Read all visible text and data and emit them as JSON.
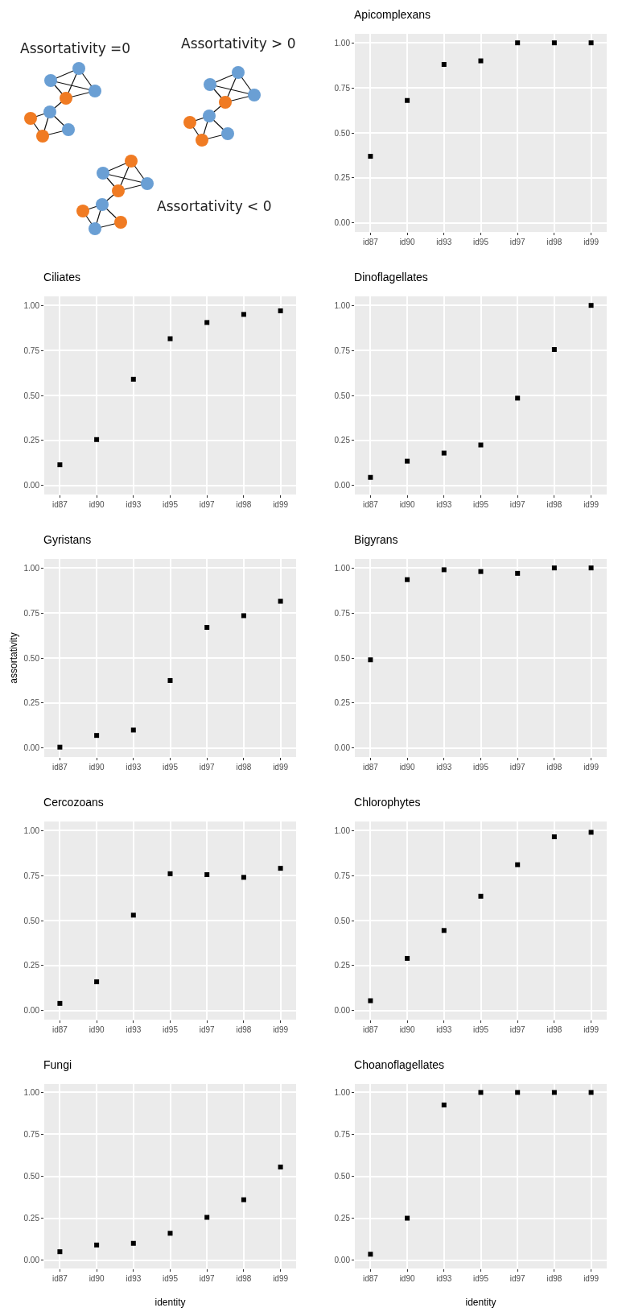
{
  "chart_data": [
    {
      "type": "other",
      "annotations": [
        "Assortativity =0",
        "Assortativity > 0",
        "Assortativity < 0"
      ]
    },
    {
      "type": "scatter",
      "title": "Apicomplexans",
      "categories": [
        "id87",
        "id90",
        "id93",
        "id95",
        "id97",
        "id98",
        "id99"
      ],
      "values": [
        0.37,
        0.68,
        0.88,
        0.9,
        1,
        1,
        1
      ],
      "color": "#000000",
      "marker": "square",
      "ylim": [
        -0.05,
        1.05
      ],
      "yticks": [
        {
          "value": 0,
          "label": "0.00"
        },
        {
          "value": 0.25,
          "label": "0.25"
        },
        {
          "value": 0.5,
          "label": "0.50"
        },
        {
          "value": 0.75,
          "label": "0.75"
        },
        {
          "value": 1,
          "label": "1.00"
        }
      ],
      "grid": true
    },
    {
      "type": "scatter",
      "title": "Ciliates",
      "categories": [
        "id87",
        "id90",
        "id93",
        "id95",
        "id97",
        "id98",
        "id99"
      ],
      "values": [
        0.115,
        0.255,
        0.59,
        0.815,
        0.905,
        0.95,
        0.97
      ],
      "color": "#000000",
      "marker": "square",
      "ylim": [
        -0.05,
        1.05
      ],
      "yticks": [
        {
          "value": 0,
          "label": "0.00"
        },
        {
          "value": 0.25,
          "label": "0.25"
        },
        {
          "value": 0.5,
          "label": "0.50"
        },
        {
          "value": 0.75,
          "label": "0.75"
        },
        {
          "value": 1,
          "label": "1.00"
        }
      ],
      "grid": true
    },
    {
      "type": "scatter",
      "title": "Dinoflagellates",
      "categories": [
        "id87",
        "id90",
        "id93",
        "id95",
        "id97",
        "id98",
        "id99"
      ],
      "values": [
        0.045,
        0.135,
        0.18,
        0.225,
        0.485,
        0.755,
        1
      ],
      "color": "#000000",
      "marker": "square",
      "ylim": [
        -0.05,
        1.05
      ],
      "yticks": [
        {
          "value": 0,
          "label": "0.00"
        },
        {
          "value": 0.25,
          "label": "0.25"
        },
        {
          "value": 0.5,
          "label": "0.50"
        },
        {
          "value": 0.75,
          "label": "0.75"
        },
        {
          "value": 1,
          "label": "1.00"
        }
      ],
      "grid": true
    },
    {
      "type": "scatter",
      "title": "Gyristans",
      "ylabel": "assortativity",
      "categories": [
        "id87",
        "id90",
        "id93",
        "id95",
        "id97",
        "id98",
        "id99"
      ],
      "values": [
        0.005,
        0.07,
        0.1,
        0.375,
        0.67,
        0.735,
        0.815
      ],
      "color": "#000000",
      "marker": "square",
      "ylim": [
        -0.05,
        1.05
      ],
      "yticks": [
        {
          "value": 0,
          "label": "0.00"
        },
        {
          "value": 0.25,
          "label": "0.25"
        },
        {
          "value": 0.5,
          "label": "0.50"
        },
        {
          "value": 0.75,
          "label": "0.75"
        },
        {
          "value": 1,
          "label": "1.00"
        }
      ],
      "grid": true
    },
    {
      "type": "scatter",
      "title": "Bigyrans",
      "categories": [
        "id87",
        "id90",
        "id93",
        "id95",
        "id97",
        "id98",
        "id99"
      ],
      "values": [
        0.49,
        0.935,
        0.99,
        0.98,
        0.97,
        1,
        1
      ],
      "color": "#000000",
      "marker": "square",
      "ylim": [
        -0.05,
        1.05
      ],
      "yticks": [
        {
          "value": 0,
          "label": "0.00"
        },
        {
          "value": 0.25,
          "label": "0.25"
        },
        {
          "value": 0.5,
          "label": "0.50"
        },
        {
          "value": 0.75,
          "label": "0.75"
        },
        {
          "value": 1,
          "label": "1.00"
        }
      ],
      "grid": true
    },
    {
      "type": "scatter",
      "title": "Cercozoans",
      "categories": [
        "id87",
        "id90",
        "id93",
        "id95",
        "id97",
        "id98",
        "id99"
      ],
      "values": [
        0.04,
        0.16,
        0.53,
        0.76,
        0.755,
        0.74,
        0.79
      ],
      "color": "#000000",
      "marker": "square",
      "ylim": [
        -0.05,
        1.05
      ],
      "yticks": [
        {
          "value": 0,
          "label": "0.00"
        },
        {
          "value": 0.25,
          "label": "0.25"
        },
        {
          "value": 0.5,
          "label": "0.50"
        },
        {
          "value": 0.75,
          "label": "0.75"
        },
        {
          "value": 1,
          "label": "1.00"
        }
      ],
      "grid": true
    },
    {
      "type": "scatter",
      "title": "Chlorophytes",
      "categories": [
        "id87",
        "id90",
        "id93",
        "id95",
        "id97",
        "id98",
        "id99"
      ],
      "values": [
        0.055,
        0.29,
        0.445,
        0.635,
        0.81,
        0.965,
        0.99
      ],
      "color": "#000000",
      "marker": "square",
      "ylim": [
        -0.05,
        1.05
      ],
      "yticks": [
        {
          "value": 0,
          "label": "0.00"
        },
        {
          "value": 0.25,
          "label": "0.25"
        },
        {
          "value": 0.5,
          "label": "0.50"
        },
        {
          "value": 0.75,
          "label": "0.75"
        },
        {
          "value": 1,
          "label": "1.00"
        }
      ],
      "grid": true
    },
    {
      "type": "scatter",
      "title": "Fungi",
      "xlabel": "identity",
      "categories": [
        "id87",
        "id90",
        "id93",
        "id95",
        "id97",
        "id98",
        "id99"
      ],
      "values": [
        0.05,
        0.09,
        0.1,
        0.16,
        0.255,
        0.36,
        0.555
      ],
      "color": "#000000",
      "marker": "square",
      "ylim": [
        -0.05,
        1.05
      ],
      "yticks": [
        {
          "value": 0,
          "label": "0.00"
        },
        {
          "value": 0.25,
          "label": "0.25"
        },
        {
          "value": 0.5,
          "label": "0.50"
        },
        {
          "value": 0.75,
          "label": "0.75"
        },
        {
          "value": 1,
          "label": "1.00"
        }
      ],
      "grid": true
    },
    {
      "type": "scatter",
      "title": "Choanoflagellates",
      "xlabel": "identity",
      "categories": [
        "id87",
        "id90",
        "id93",
        "id95",
        "id97",
        "id98",
        "id99"
      ],
      "values": [
        0.035,
        0.25,
        0.925,
        1,
        1,
        1,
        1
      ],
      "color": "#000000",
      "marker": "square",
      "ylim": [
        -0.05,
        1.05
      ],
      "yticks": [
        {
          "value": 0,
          "label": "0.00"
        },
        {
          "value": 0.25,
          "label": "0.25"
        },
        {
          "value": 0.5,
          "label": "0.50"
        },
        {
          "value": 0.75,
          "label": "0.75"
        },
        {
          "value": 1,
          "label": "1.00"
        }
      ],
      "grid": true
    }
  ]
}
